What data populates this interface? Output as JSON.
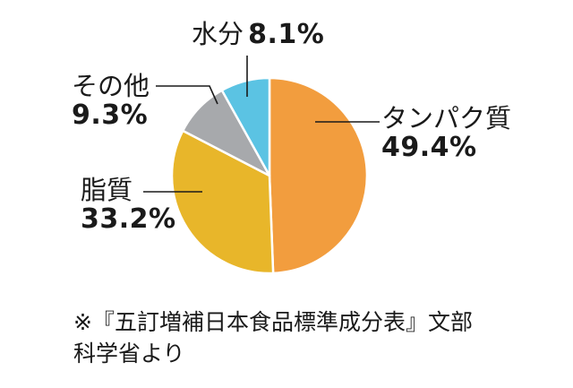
{
  "chart_data": {
    "type": "pie",
    "categories": [
      "タンパク質",
      "脂質",
      "その他",
      "水分"
    ],
    "values": [
      49.4,
      33.2,
      9.3,
      8.1
    ],
    "labels_text": [
      "49.4%",
      "33.2%",
      "9.3%",
      "8.1%"
    ],
    "colors": [
      "#f29d3e",
      "#e8b62a",
      "#a7a9ac",
      "#5bc3e3"
    ],
    "start_angle_deg": 0,
    "direction": "clockwise",
    "title": "",
    "legend": "none"
  },
  "note": {
    "line1": "※『五訂増補日本食品標準成分表』文部",
    "line2": "科学省より"
  }
}
